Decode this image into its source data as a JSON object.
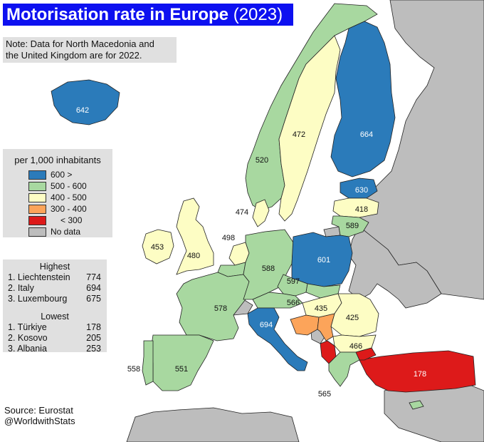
{
  "title": {
    "main": "Motorisation rate in Europe",
    "year": "(2023)"
  },
  "note": {
    "line1": "Note: Data for North Macedonia and",
    "line2": "the United Kingdom are for 2022."
  },
  "legend": {
    "title": "per 1,000 inhabitants",
    "items": [
      {
        "label": "600 >",
        "color": "#2b7bba"
      },
      {
        "label": "500 - 600",
        "color": "#a8d8a0"
      },
      {
        "label": "400 - 500",
        "color": "#fdfdc4"
      },
      {
        "label": "300 - 400",
        "color": "#fca45a"
      },
      {
        "label": "< 300",
        "color": "#dd1a1a"
      },
      {
        "label": "No data",
        "color": "#bdbdbd"
      }
    ]
  },
  "stats": {
    "highest_heading": "Highest",
    "highest": [
      {
        "rank": "1. Liechtenstein",
        "value": "774"
      },
      {
        "rank": "2. Italy",
        "value": "694"
      },
      {
        "rank": "3. Luxembourg",
        "value": "675"
      }
    ],
    "lowest_heading": "Lowest",
    "lowest": [
      {
        "rank": "1. Türkiye",
        "value": "178"
      },
      {
        "rank": "2. Kosovo",
        "value": "205"
      },
      {
        "rank": "3. Albania",
        "value": "253"
      }
    ]
  },
  "source": {
    "line1": "Source: Eurostat",
    "line2": "@WorldwithStats"
  },
  "colors": {
    "title_bg": "#0d10f0",
    "sea": "#ffffff",
    "no_data": "#bdbdbd",
    "border": "#222222",
    "box_bg": "#e0e0e0"
  },
  "countries": [
    {
      "name": "Iceland",
      "value": "642",
      "color": "#2b7bba"
    },
    {
      "name": "Norway",
      "value": "520",
      "color": "#a8d8a0"
    },
    {
      "name": "Sweden",
      "value": "472",
      "color": "#fdfdc4"
    },
    {
      "name": "Finland",
      "value": "664",
      "color": "#2b7bba"
    },
    {
      "name": "Estonia",
      "value": "630",
      "color": "#2b7bba"
    },
    {
      "name": "Latvia",
      "value": "418",
      "color": "#fdfdc4"
    },
    {
      "name": "Lithuania",
      "value": "589",
      "color": "#a8d8a0"
    },
    {
      "name": "Denmark",
      "value": "474",
      "color": "#fdfdc4"
    },
    {
      "name": "Netherlands",
      "value": "498",
      "color": "#fdfdc4"
    },
    {
      "name": "Ireland",
      "value": "453",
      "color": "#fdfdc4"
    },
    {
      "name": "United Kingdom",
      "value": "480",
      "color": "#fdfdc4"
    },
    {
      "name": "Germany",
      "value": "588",
      "color": "#a8d8a0"
    },
    {
      "name": "Poland",
      "value": "601",
      "color": "#2b7bba"
    },
    {
      "name": "Czechia",
      "value": "597",
      "color": "#a8d8a0"
    },
    {
      "name": "Austria",
      "value": "566",
      "color": "#a8d8a0"
    },
    {
      "name": "France",
      "value": "578",
      "color": "#a8d8a0"
    },
    {
      "name": "Hungary",
      "value": "435",
      "color": "#fdfdc4"
    },
    {
      "name": "Romania",
      "value": "425",
      "color": "#fdfdc4"
    },
    {
      "name": "Bulgaria",
      "value": "466",
      "color": "#fdfdc4"
    },
    {
      "name": "Italy",
      "value": "694",
      "color": "#2b7bba"
    },
    {
      "name": "Spain",
      "value": "551",
      "color": "#a8d8a0"
    },
    {
      "name": "Portugal",
      "value": "558",
      "color": "#a8d8a0"
    },
    {
      "name": "Greece",
      "value": "565",
      "color": "#a8d8a0"
    },
    {
      "name": "Türkiye",
      "value": "178",
      "color": "#dd1a1a"
    }
  ]
}
